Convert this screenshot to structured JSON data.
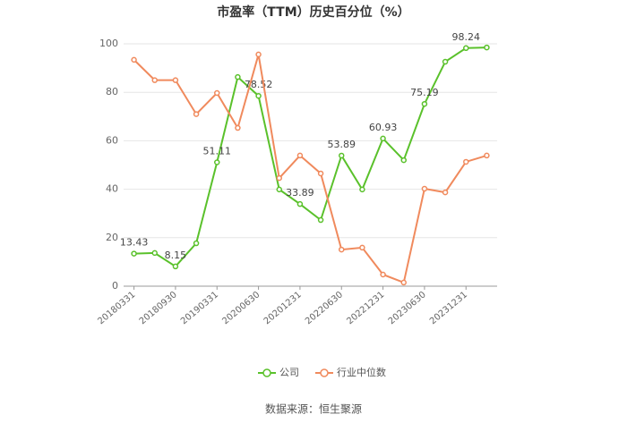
{
  "chart_data": {
    "type": "line",
    "title": "市盈率（TTM）历史百分位（%）",
    "categories": [
      "20180331",
      null,
      "20180930",
      null,
      "20190331",
      null,
      "20200630",
      null,
      "20201231",
      null,
      "20220630",
      null,
      "20221231",
      null,
      "20230630",
      null,
      "20231231",
      null
    ],
    "series": [
      {
        "name": "公司",
        "color": "#5ac12b",
        "values": [
          13.43,
          13.7,
          8.15,
          17.7,
          51.11,
          86.3,
          78.52,
          39.9,
          33.89,
          27.3,
          53.89,
          39.9,
          60.93,
          52,
          75.19,
          92.6,
          98.24,
          98.5
        ],
        "value_labels": [
          "13.43",
          null,
          "8.15",
          null,
          "51.11",
          null,
          "78.52",
          null,
          "33.89",
          null,
          "53.89",
          null,
          "60.93",
          null,
          "75.19",
          null,
          "98.24",
          null
        ]
      },
      {
        "name": "行业中位数",
        "color": "#f08a5d",
        "values": [
          93.4,
          85,
          85,
          71,
          79.7,
          65.3,
          95.6,
          44.6,
          53.9,
          46.5,
          15.1,
          15.9,
          4.8,
          1.5,
          40.2,
          38.7,
          51.3,
          53.9
        ]
      }
    ],
    "ylim": [
      0,
      100
    ],
    "yticks": [
      0,
      20,
      40,
      60,
      80,
      100
    ],
    "grid": true,
    "legend": "bottom",
    "source": "数据来源：恒生聚源"
  }
}
